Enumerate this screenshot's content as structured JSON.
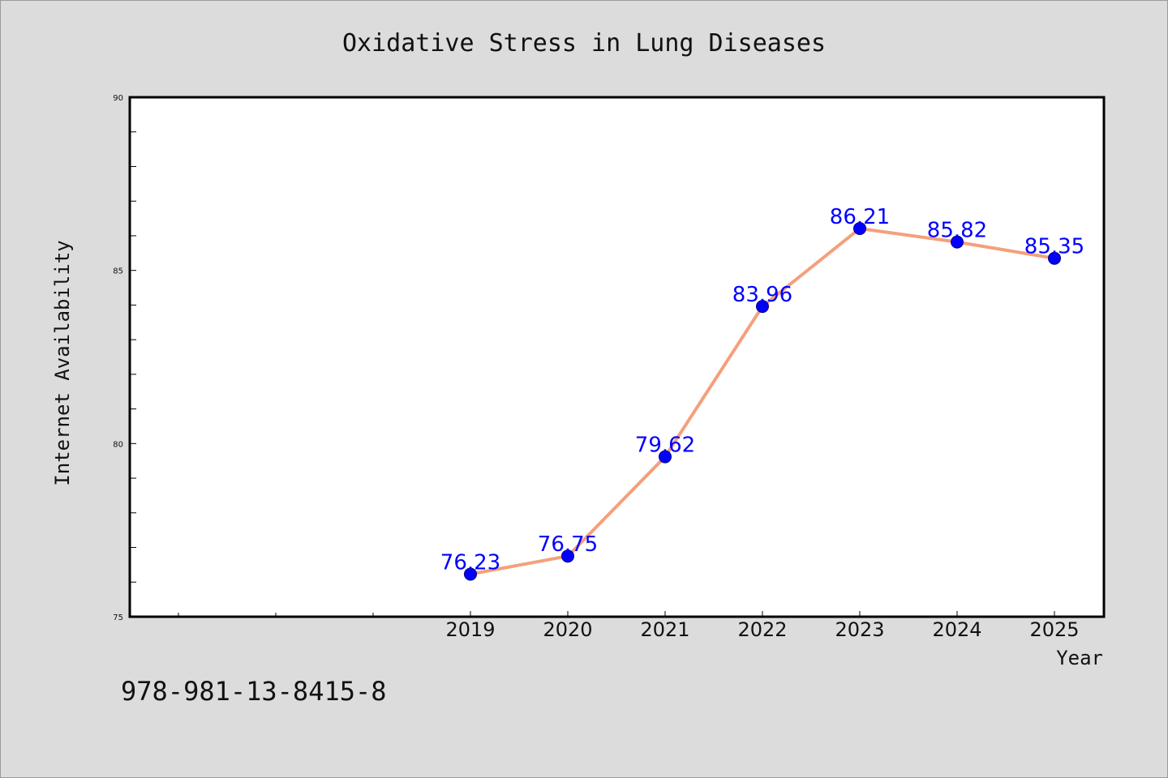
{
  "footer_code": "978-981-13-8415-8",
  "chart_data": {
    "type": "line",
    "title": "Oxidative Stress in Lung Diseases",
    "xlabel": "Year",
    "ylabel": "Internet Availability",
    "x": [
      "2019",
      "2020",
      "2021",
      "2022",
      "2023",
      "2024",
      "2025"
    ],
    "series": [
      {
        "values": [
          76.23,
          76.75,
          79.62,
          83.96,
          86.21,
          85.82,
          85.35
        ],
        "labels": [
          "76.23",
          "76.75",
          "79.62",
          "83.96",
          "86.21",
          "85.82",
          "85.35"
        ],
        "line_color": "#f4a07c",
        "marker_color": "#0000ff"
      }
    ],
    "ylim": [
      75,
      90
    ],
    "yticks": [
      "75",
      "80",
      "85",
      "90"
    ],
    "grid": false,
    "legend": "none",
    "colors": {
      "background": "#dcdcdc",
      "plot_background": "#ffffff",
      "label_color": "#0000ff"
    }
  }
}
